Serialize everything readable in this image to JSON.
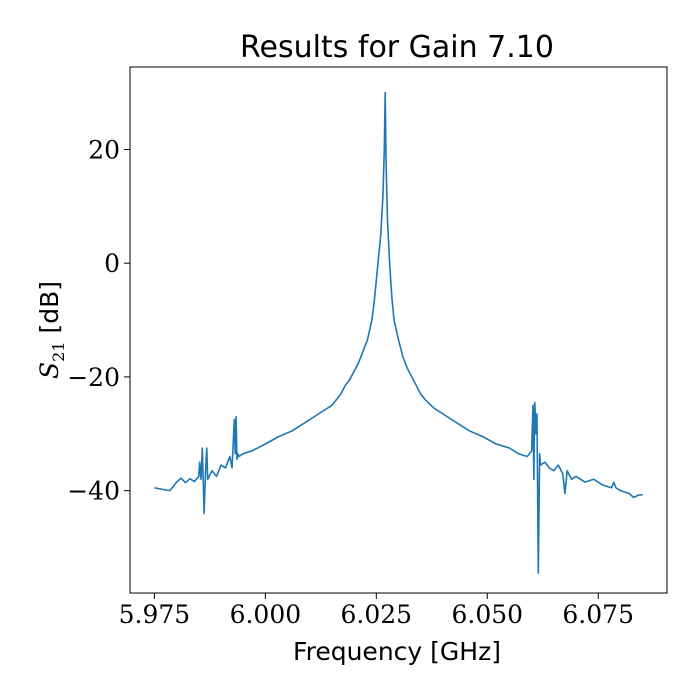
{
  "chart_data": {
    "type": "line",
    "title": "Results for Gain 7.10",
    "xlabel": "Frequency [GHz]",
    "ylabel_main": "S",
    "ylabel_sub": "21",
    "ylabel_unit": " [dB]",
    "xlim": [
      5.9695,
      6.0905
    ],
    "ylim": [
      -58,
      34.5
    ],
    "grid": false,
    "x_ticks": [
      5.975,
      6.0,
      6.025,
      6.05,
      6.075
    ],
    "x_tick_labels": [
      "5.975",
      "6.000",
      "6.025",
      "6.050",
      "6.075"
    ],
    "y_ticks": [
      20,
      0,
      -20,
      -40
    ],
    "y_tick_labels": [
      "20",
      "0",
      "−20",
      "−40"
    ],
    "series": [
      {
        "color": "#1f77b4",
        "x": [
          5.975,
          5.977,
          5.9785,
          5.98,
          5.981,
          5.982,
          5.983,
          5.984,
          5.985,
          5.9852,
          5.9855,
          5.9858,
          5.986,
          5.9862,
          5.9865,
          5.9868,
          5.987,
          5.988,
          5.989,
          5.99,
          5.991,
          5.992,
          5.9925,
          5.993,
          5.9932,
          5.9934,
          5.9936,
          5.9938,
          5.994,
          5.995,
          5.997,
          6.0,
          6.003,
          6.006,
          6.009,
          6.012,
          6.015,
          6.017,
          6.018,
          6.019,
          6.02,
          6.021,
          6.022,
          6.023,
          6.024,
          6.0245,
          6.025,
          6.0255,
          6.026,
          6.0265,
          6.0268,
          6.027,
          6.0272,
          6.0275,
          6.028,
          6.0285,
          6.029,
          6.03,
          6.031,
          6.032,
          6.033,
          6.034,
          6.035,
          6.036,
          6.038,
          6.04,
          6.043,
          6.046,
          6.049,
          6.052,
          6.055,
          6.057,
          6.059,
          6.06,
          6.0603,
          6.0605,
          6.0607,
          6.061,
          6.0612,
          6.0615,
          6.0618,
          6.062,
          6.063,
          6.064,
          6.065,
          6.066,
          6.067,
          6.0675,
          6.068,
          6.069,
          6.07,
          6.072,
          6.074,
          6.076,
          6.078,
          6.0785,
          6.079,
          6.08,
          6.082,
          6.083,
          6.084,
          6.085
        ],
        "y": [
          -39.5,
          -39.8,
          -40.0,
          -38.5,
          -37.8,
          -38.6,
          -37.9,
          -38.4,
          -37.5,
          -35.0,
          -38.0,
          -32.5,
          -38.5,
          -44.0,
          -37.0,
          -32.5,
          -38.0,
          -36.5,
          -37.5,
          -35.5,
          -36.0,
          -34.0,
          -36.0,
          -27.5,
          -33.5,
          -27.0,
          -34.5,
          -33.5,
          -34.0,
          -33.5,
          -33.0,
          -31.8,
          -30.5,
          -29.5,
          -28.0,
          -26.5,
          -25.0,
          -23.0,
          -21.5,
          -20.5,
          -19.0,
          -17.5,
          -15.5,
          -13.5,
          -10.0,
          -7.0,
          -3.0,
          1.0,
          5.0,
          12.0,
          20.0,
          30.0,
          18.0,
          8.0,
          0.0,
          -6.0,
          -10.0,
          -13.5,
          -16.5,
          -18.5,
          -20.0,
          -21.5,
          -23.0,
          -24.0,
          -25.5,
          -26.5,
          -28.0,
          -29.5,
          -30.5,
          -31.8,
          -32.5,
          -33.5,
          -34.0,
          -33.0,
          -25.0,
          -38.0,
          -24.5,
          -30.0,
          -26.5,
          -54.5,
          -33.5,
          -35.5,
          -35.0,
          -36.0,
          -36.5,
          -35.5,
          -37.0,
          -40.5,
          -36.5,
          -38.0,
          -37.5,
          -38.5,
          -38.0,
          -39.0,
          -39.5,
          -38.5,
          -39.5,
          -40.0,
          -40.5,
          -41.2,
          -40.8,
          -40.7
        ]
      }
    ]
  }
}
